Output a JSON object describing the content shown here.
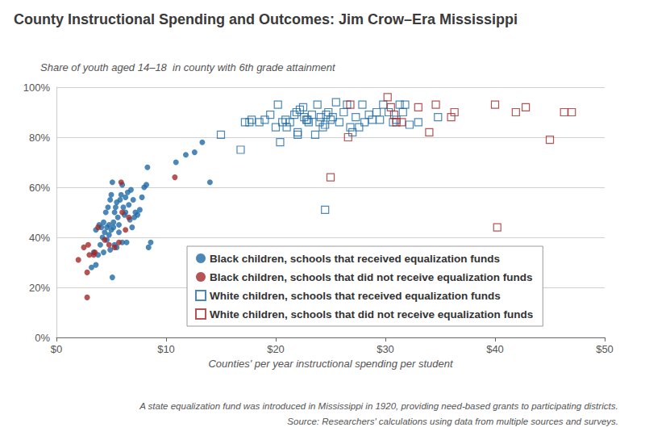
{
  "chart_data": {
    "type": "scatter",
    "title": "County Instructional Spending and Outcomes: Jim Crow–Era Mississippi",
    "subtitle": "Share of youth aged 14–18  in county with 6th grade attainment",
    "x_label": "Counties' per year instructional spending per student",
    "notes": [
      "A state equalization fund was introduced in Mississippi in 1920, providing need-based grants to participating districts.",
      "Source: Researchers' calculations using data from multiple sources and surveys."
    ],
    "xlim": [
      0,
      50
    ],
    "xticks": [
      {
        "value": 0,
        "label": "$0"
      },
      {
        "value": 10,
        "label": "$10"
      },
      {
        "value": 20,
        "label": "$20"
      },
      {
        "value": 30,
        "label": "$30"
      },
      {
        "value": 40,
        "label": "$40"
      },
      {
        "value": 50,
        "label": "$50"
      }
    ],
    "ylim": [
      0,
      100
    ],
    "yticks": [
      {
        "value": 0,
        "label": "0%"
      },
      {
        "value": 20,
        "label": "20%"
      },
      {
        "value": 40,
        "label": "40%"
      },
      {
        "value": 60,
        "label": "60%"
      },
      {
        "value": 80,
        "label": "80%"
      },
      {
        "value": 100,
        "label": "100%"
      }
    ],
    "grid": true,
    "series": [
      {
        "name": "Black children, schools that received equalization funds",
        "color": "#1f6aa5",
        "marker": "circle",
        "values": [
          [
            3.2,
            28
          ],
          [
            3.6,
            29
          ],
          [
            3.8,
            33
          ],
          [
            3.4,
            34
          ],
          [
            4.0,
            37
          ],
          [
            4.2,
            40
          ],
          [
            4.4,
            42
          ],
          [
            4.1,
            44
          ],
          [
            3.9,
            45
          ],
          [
            4.3,
            46
          ],
          [
            4.6,
            44
          ],
          [
            4.8,
            45
          ],
          [
            4.5,
            50
          ],
          [
            4.7,
            52
          ],
          [
            4.9,
            55
          ],
          [
            5.0,
            57
          ],
          [
            5.1,
            62
          ],
          [
            4.8,
            41
          ],
          [
            5.0,
            43
          ],
          [
            5.2,
            46
          ],
          [
            5.3,
            50
          ],
          [
            5.4,
            52
          ],
          [
            5.5,
            54
          ],
          [
            5.6,
            48
          ],
          [
            5.7,
            45
          ],
          [
            5.8,
            55
          ],
          [
            5.9,
            57
          ],
          [
            6.0,
            61
          ],
          [
            6.1,
            52
          ],
          [
            6.2,
            49
          ],
          [
            6.3,
            56
          ],
          [
            6.5,
            58
          ],
          [
            6.6,
            53
          ],
          [
            6.7,
            47
          ],
          [
            6.8,
            59
          ],
          [
            7.0,
            55
          ],
          [
            7.2,
            50
          ],
          [
            7.4,
            49
          ],
          [
            7.6,
            51
          ],
          [
            7.8,
            56
          ],
          [
            8.0,
            60
          ],
          [
            8.2,
            61
          ],
          [
            8.3,
            68
          ],
          [
            8.4,
            36
          ],
          [
            8.6,
            38
          ],
          [
            5.1,
            24
          ],
          [
            5.3,
            37
          ],
          [
            5.5,
            36
          ],
          [
            6.0,
            38
          ],
          [
            6.4,
            38
          ],
          [
            4.9,
            35
          ],
          [
            4.6,
            39
          ],
          [
            5.7,
            42
          ],
          [
            6.9,
            44
          ],
          [
            6.3,
            50
          ],
          [
            10.9,
            70
          ],
          [
            11.8,
            73
          ],
          [
            12.6,
            74
          ],
          [
            13.3,
            78
          ],
          [
            14.0,
            62
          ],
          [
            7.1,
            48
          ],
          [
            5.2,
            44
          ],
          [
            4.3,
            34
          ],
          [
            3.6,
            43
          ]
        ]
      },
      {
        "name": "Black children, schools that did not receive equalization funds",
        "color": "#a3282b",
        "marker": "circle",
        "values": [
          [
            2.0,
            31
          ],
          [
            2.5,
            36
          ],
          [
            2.8,
            26
          ],
          [
            2.9,
            37
          ],
          [
            2.8,
            16
          ],
          [
            3.4,
            33
          ],
          [
            3.5,
            34
          ],
          [
            3.8,
            44
          ],
          [
            4.4,
            39
          ],
          [
            4.8,
            37
          ],
          [
            5.3,
            36
          ],
          [
            5.7,
            38
          ],
          [
            5.9,
            62
          ],
          [
            6.0,
            50
          ],
          [
            6.3,
            43
          ],
          [
            6.6,
            48
          ],
          [
            10.8,
            64
          ],
          [
            3.0,
            33
          ]
        ]
      },
      {
        "name": "White children, schools that received equalization funds",
        "color": "#1f6aa5",
        "marker": "open square",
        "values": [
          [
            15.0,
            81
          ],
          [
            16.8,
            75
          ],
          [
            17.2,
            86
          ],
          [
            17.6,
            86
          ],
          [
            17.8,
            87
          ],
          [
            18.5,
            86
          ],
          [
            19.0,
            87
          ],
          [
            19.5,
            89
          ],
          [
            20.0,
            84
          ],
          [
            20.2,
            93
          ],
          [
            20.4,
            78
          ],
          [
            20.6,
            86
          ],
          [
            20.9,
            87
          ],
          [
            21.0,
            84
          ],
          [
            21.3,
            86
          ],
          [
            21.7,
            89
          ],
          [
            22.0,
            82
          ],
          [
            22.0,
            81
          ],
          [
            22.2,
            91
          ],
          [
            22.5,
            92
          ],
          [
            22.6,
            88
          ],
          [
            22.8,
            87
          ],
          [
            23.0,
            86
          ],
          [
            23.3,
            89
          ],
          [
            23.6,
            81
          ],
          [
            23.8,
            93
          ],
          [
            24.0,
            86
          ],
          [
            24.1,
            88
          ],
          [
            24.3,
            84
          ],
          [
            24.5,
            85
          ],
          [
            24.6,
            89
          ],
          [
            24.8,
            90
          ],
          [
            25.0,
            87
          ],
          [
            25.2,
            88
          ],
          [
            25.5,
            94
          ],
          [
            25.8,
            86
          ],
          [
            26.2,
            90
          ],
          [
            26.5,
            93
          ],
          [
            26.8,
            84
          ],
          [
            27.0,
            82
          ],
          [
            27.3,
            88
          ],
          [
            27.6,
            84
          ],
          [
            27.9,
            93
          ],
          [
            28.1,
            86
          ],
          [
            28.5,
            89
          ],
          [
            28.8,
            87
          ],
          [
            29.2,
            90
          ],
          [
            29.5,
            87
          ],
          [
            29.8,
            93
          ],
          [
            30.3,
            90
          ],
          [
            30.7,
            86
          ],
          [
            31.0,
            87
          ],
          [
            31.3,
            93
          ],
          [
            31.6,
            90
          ],
          [
            31.8,
            93
          ],
          [
            32.2,
            85
          ],
          [
            33.0,
            86
          ],
          [
            34.8,
            88
          ],
          [
            24.5,
            51
          ],
          [
            22.9,
            87
          ],
          [
            21.9,
            90
          ]
        ]
      },
      {
        "name": "White children, schools that did not receive equalization funds",
        "color": "#a3282b",
        "marker": "open square",
        "values": [
          [
            25.0,
            64
          ],
          [
            26.6,
            80
          ],
          [
            26.8,
            93
          ],
          [
            30.2,
            96
          ],
          [
            30.5,
            92
          ],
          [
            31.0,
            86
          ],
          [
            31.5,
            86
          ],
          [
            33.0,
            92
          ],
          [
            34.0,
            82
          ],
          [
            34.6,
            93
          ],
          [
            36.0,
            88
          ],
          [
            36.3,
            90
          ],
          [
            40.0,
            93
          ],
          [
            40.2,
            44
          ],
          [
            41.9,
            90
          ],
          [
            42.8,
            92
          ],
          [
            45.0,
            79
          ],
          [
            46.3,
            90
          ],
          [
            47.0,
            90
          ],
          [
            30.8,
            89
          ]
        ]
      }
    ]
  }
}
